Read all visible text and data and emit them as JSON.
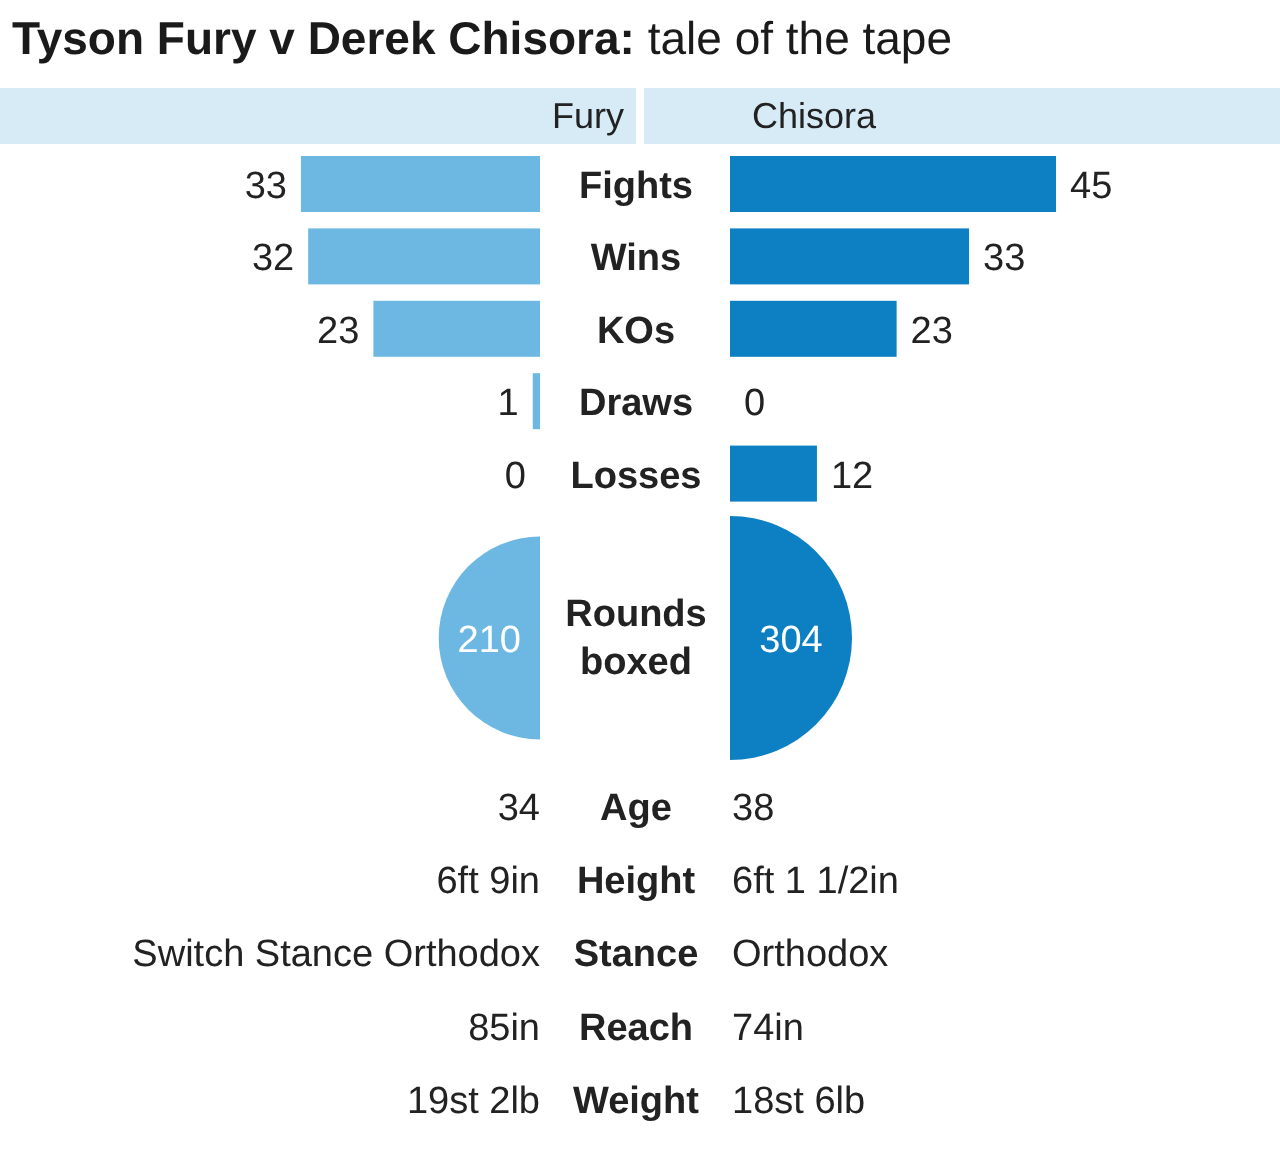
{
  "chart_data": [
    {
      "type": "bar",
      "orientation": "horizontal",
      "title": "Tyson Fury v Derek Chisora: tale of the tape",
      "categories": [
        "Fights",
        "Wins",
        "KOs",
        "Draws",
        "Losses"
      ],
      "series": [
        {
          "name": "Fury",
          "color": "#6cb8e2",
          "values": [
            33,
            32,
            23,
            1,
            0
          ]
        }
      ],
      "data_labels": true,
      "legend": "top"
    },
    {
      "type": "bar",
      "orientation": "horizontal",
      "categories": [
        null,
        null,
        null,
        null,
        null
      ],
      "series": [
        {
          "name": "Chisora",
          "color": "#0c80c3",
          "values": [
            45,
            33,
            23,
            0,
            12
          ]
        }
      ],
      "data_labels": true,
      "legend": "top"
    },
    {
      "type": "other",
      "categories": [
        "Rounds boxed"
      ],
      "series": [
        {
          "color": "#6cb8e2",
          "values": [
            210
          ]
        },
        {
          "color": "#0c80c3",
          "values": [
            304
          ]
        }
      ],
      "data_labels": true
    },
    {
      "type": "other",
      "categories": [
        "Age",
        "Height",
        "Stance",
        "Reach",
        "Weight"
      ],
      "series": [
        {
          "values": [
            null,
            null,
            null,
            null,
            null
          ],
          "value_labels": [
            "34",
            "6ft 9in",
            "Switch Stance Orthodox",
            "85in",
            "19st 2lb"
          ]
        },
        {
          "values": [
            null,
            null,
            null,
            null,
            null
          ],
          "value_labels": [
            "38",
            "6ft 1 1/2in",
            "Orthodox",
            "74in",
            "18st 6lb"
          ]
        }
      ]
    }
  ]
}
